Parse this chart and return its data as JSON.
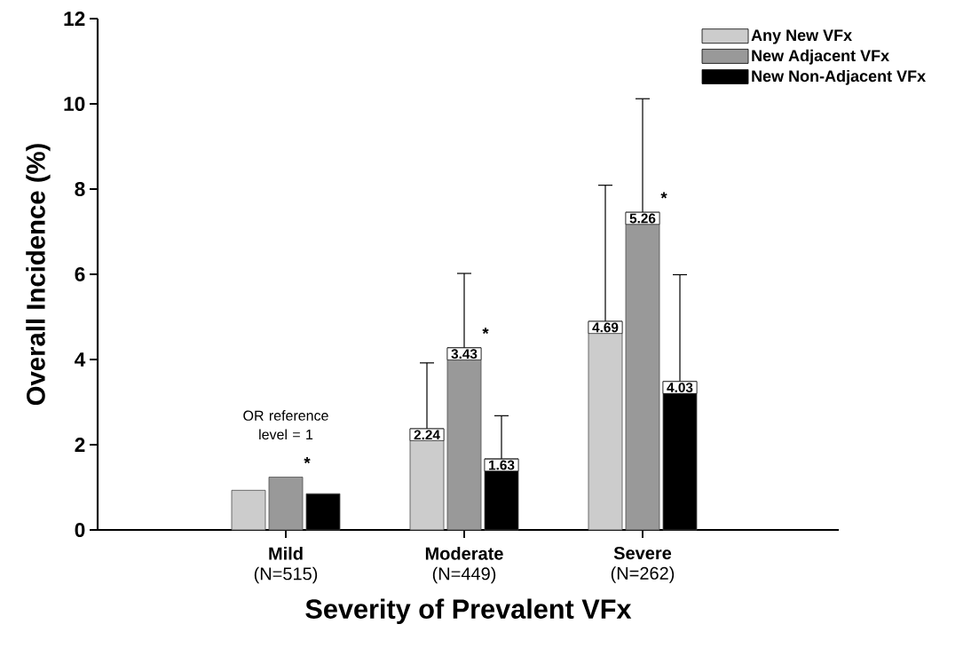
{
  "chart_data": {
    "type": "bar",
    "xlabel": "Severity of Prevalent VFx",
    "ylabel": "Overall Incidence (%)",
    "categories": [
      "**Mild** (N=515)",
      "**Moderate** (N=449)",
      "**Severe** (N=262)"
    ],
    "series": [
      {
        "name": "Any New VFx",
        "color": "#cccccc",
        "values": [
          0.93,
          2.38,
          4.9
        ],
        "errors": [
          null,
          [
            2.38,
            3.92
          ],
          [
            4.9,
            8.09
          ]
        ]
      },
      {
        "name": "New Adjacent VFx",
        "color": "#999999",
        "values": [
          1.24,
          4.28,
          7.46
        ],
        "errors": [
          null,
          [
            4.28,
            6.02
          ],
          [
            7.46,
            10.12
          ]
        ]
      },
      {
        "name": "New Non-Adjacent VFx",
        "color": "#000000",
        "values": [
          0.85,
          1.67,
          3.49
        ],
        "errors": [
          null,
          [
            1.67,
            2.68
          ],
          [
            3.49,
            5.99
          ]
        ]
      }
    ],
    "ylim": [
      0,
      12
    ],
    "yticks": [
      0,
      2,
      4,
      6,
      8,
      10,
      12
    ],
    "legend": "top right",
    "annotations": [
      "OR reference level = 1",
      {
        "text": "*",
        "x": "**Mild** (N=515)",
        "y": 1.24
      },
      {
        "text": "*",
        "x": "**Moderate** (N=449)",
        "y": 4.28
      },
      {
        "text": "*",
        "x": "**Severe** (N=262)",
        "y": 7.46
      },
      "2.24",
      "3.43",
      "1.63",
      "4.69",
      "5.26",
      "4.03"
    ]
  }
}
